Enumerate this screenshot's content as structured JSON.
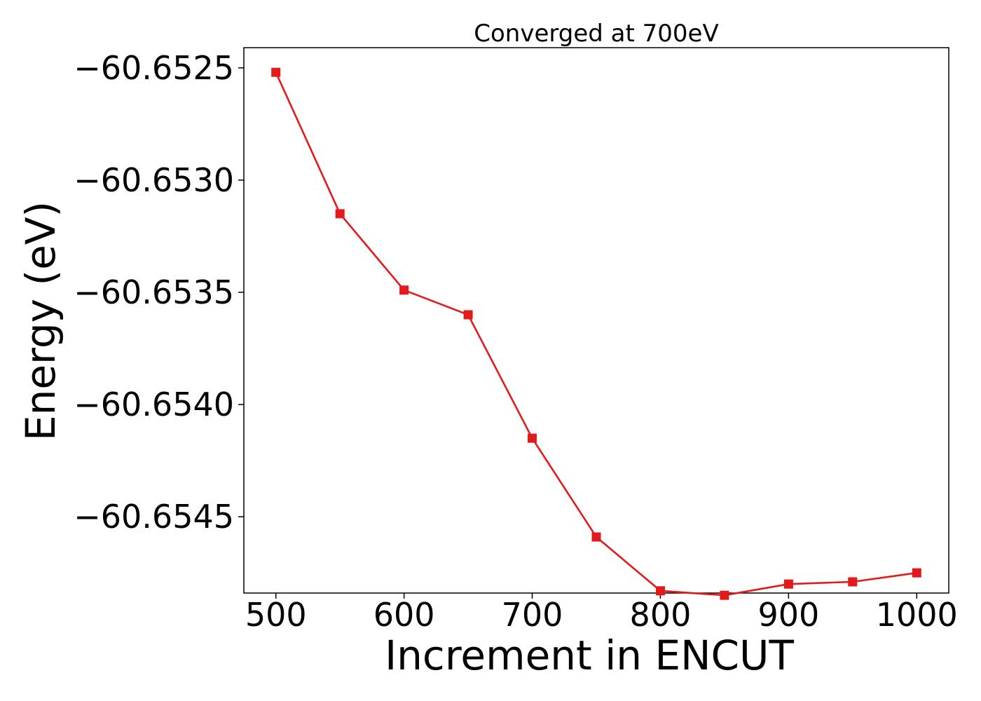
{
  "chart_data": {
    "type": "line",
    "title": "Converged at 700eV",
    "xlabel": "Increment in ENCUT",
    "ylabel": "Energy (eV)",
    "xlim": [
      475,
      1025
    ],
    "ylim": [
      -60.65484,
      -60.65241
    ],
    "xticks": [
      500,
      600,
      700,
      800,
      900,
      1000
    ],
    "xtick_labels": [
      "500",
      "600",
      "700",
      "800",
      "900",
      "1000"
    ],
    "yticks": [
      -60.6525,
      -60.653,
      -60.6535,
      -60.654,
      -60.6545
    ],
    "ytick_labels": [
      "−60.6525",
      "−60.6530",
      "−60.6535",
      "−60.6540",
      "−60.6545"
    ],
    "grid": false,
    "series": [
      {
        "color": "#e31a1c",
        "marker": "square",
        "x": [
          500,
          550,
          600,
          650,
          700,
          750,
          800,
          850,
          900,
          950,
          1000
        ],
        "y": [
          -60.65252,
          -60.65315,
          -60.65349,
          -60.6536,
          -60.65415,
          -60.65459,
          -60.65483,
          -60.65485,
          -60.6548,
          -60.65479,
          -60.65475
        ]
      }
    ]
  }
}
